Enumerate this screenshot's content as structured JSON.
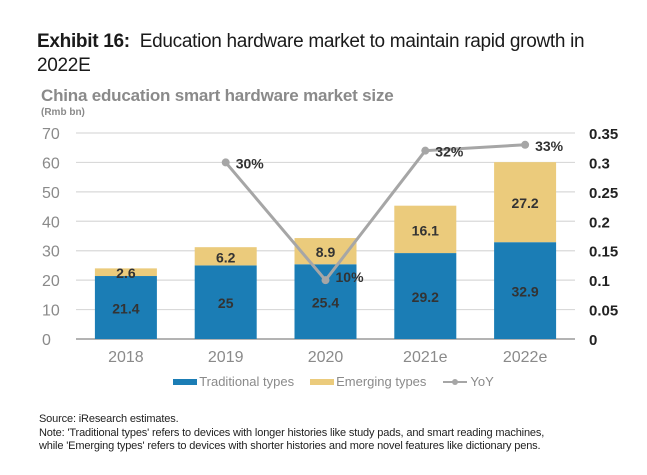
{
  "exhibit": {
    "label": "Exhibit 16:",
    "title": "Education hardware market to maintain rapid growth in 2022E"
  },
  "chart_data": {
    "type": "bar",
    "stacked": true,
    "title": "China education smart hardware market size",
    "ylabel": "(Rmb bn)",
    "xlabel": "",
    "categories": [
      "2018",
      "2019",
      "2020",
      "2021e",
      "2022e"
    ],
    "series": [
      {
        "name": "Traditional types",
        "type": "bar",
        "color": "#1b7db5",
        "values": [
          21.4,
          25,
          25.4,
          29.2,
          32.9
        ]
      },
      {
        "name": "Emerging types",
        "type": "bar",
        "color": "#ebcb7c",
        "values": [
          2.6,
          6.2,
          8.9,
          16.1,
          27.2
        ]
      },
      {
        "name": "YoY",
        "type": "line",
        "axis": "right",
        "color": "#a6a6a6",
        "values": [
          null,
          0.3,
          0.1,
          0.32,
          0.33
        ],
        "labels": [
          "",
          "30%",
          "10%",
          "32%",
          "33%"
        ]
      }
    ],
    "ylim": [
      0,
      70
    ],
    "yticks": [
      "0",
      "10",
      "20",
      "30",
      "40",
      "50",
      "60",
      "70"
    ],
    "y2lim": [
      0,
      0.35
    ],
    "y2ticks": [
      "0",
      "0.05",
      "0.1",
      "0.15",
      "0.2",
      "0.25",
      "0.3",
      "0.35"
    ],
    "grid": true,
    "legend": "bottom"
  },
  "footer": {
    "source": "Source: iResearch estimates.",
    "note_line1": "Note: 'Traditional types' refers to devices with longer histories like study pads, and smart reading machines,",
    "note_line2": "while 'Emerging types' refers to devices with shorter histories and more novel features like dictionary pens."
  }
}
